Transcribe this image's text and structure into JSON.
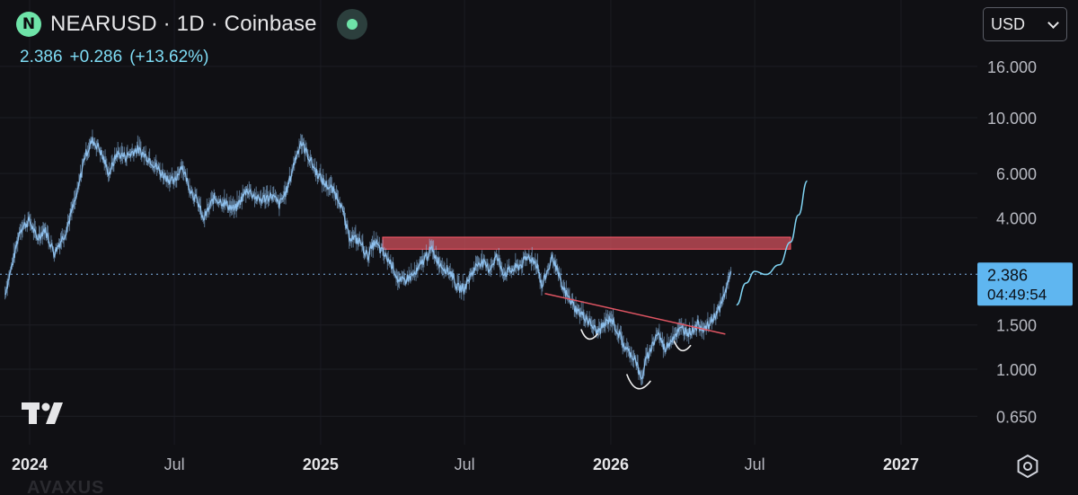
{
  "header": {
    "title": "NEARUSD · 1D · Coinbase",
    "logo_letter": "N",
    "price": "2.386",
    "change": "+0.286",
    "change_pct": "(+13.62%)"
  },
  "currency": {
    "selected": "USD"
  },
  "price_tag": {
    "price": "2.386",
    "countdown": "04:49:54"
  },
  "watermark": "AVAXUS",
  "colors": {
    "background": "#101014",
    "candles": "#8fc1ee",
    "resistance_zone": "#d0505c",
    "trendline": "#e05563",
    "projection": "#7fd3f2",
    "price_label": "#5fb6f0"
  },
  "chart_data": {
    "type": "line",
    "title": "NEARUSD · 1D · Coinbase",
    "y_scale": "log",
    "ylim": [
      0.5,
      20
    ],
    "x_ticks": [
      "2024",
      "Jul",
      "2025",
      "Jul",
      "2026",
      "Jul",
      "2027"
    ],
    "y_ticks": [
      "16.000",
      "10.000",
      "6.000",
      "4.000",
      "2.386",
      "1.500",
      "1.000",
      "0.650"
    ],
    "last_price": 2.386,
    "x_dates_start": "2023-12-01",
    "series": [
      {
        "x": [
          "2023-12-01",
          "2023-12-10",
          "2023-12-20",
          "2024-01-01",
          "2024-01-10",
          "2024-01-20",
          "2024-02-01",
          "2024-02-15",
          "2024-03-01",
          "2024-03-10",
          "2024-03-20",
          "2024-03-28",
          "2024-04-10",
          "2024-04-20",
          "2024-05-01",
          "2024-05-15",
          "2024-06-01",
          "2024-06-15",
          "2024-07-01",
          "2024-07-10",
          "2024-07-20",
          "2024-08-01",
          "2024-08-06",
          "2024-08-20",
          "2024-09-01",
          "2024-09-15",
          "2024-10-01",
          "2024-10-15",
          "2024-11-01",
          "2024-11-10",
          "2024-11-20",
          "2024-12-01",
          "2024-12-07",
          "2024-12-15",
          "2024-12-25",
          "2025-01-05",
          "2025-01-15",
          "2025-01-25",
          "2025-02-05",
          "2025-02-20",
          "2025-03-01",
          "2025-03-10",
          "2025-03-20",
          "2025-04-01",
          "2025-04-10",
          "2025-04-20",
          "2025-05-01",
          "2025-05-10",
          "2025-05-20",
          "2025-06-01",
          "2025-06-15",
          "2025-06-22",
          "2025-07-01",
          "2025-07-10",
          "2025-07-20",
          "2025-08-01",
          "2025-08-10",
          "2025-08-20",
          "2025-09-01",
          "2025-09-10",
          "2025-09-20",
          "2025-10-01",
          "2025-10-06",
          "2025-10-10",
          "2025-10-20",
          "2025-11-01",
          "2025-11-10",
          "2025-11-20",
          "2025-12-01",
          "2025-12-15",
          "2026-01-01",
          "2026-01-10",
          "2026-01-20",
          "2026-02-01",
          "2026-02-08",
          "2026-02-15",
          "2026-03-01",
          "2026-03-10",
          "2026-03-20",
          "2026-04-01",
          "2026-04-10",
          "2026-04-20",
          "2026-05-01",
          "2026-05-10",
          "2026-05-20",
          "2026-05-28",
          "2026-06-01"
        ],
        "values": [
          2.0,
          2.6,
          3.6,
          3.9,
          3.3,
          3.6,
          2.9,
          3.5,
          5.0,
          7.0,
          8.1,
          7.6,
          6.0,
          7.2,
          7.0,
          7.5,
          6.8,
          6.0,
          5.5,
          6.5,
          5.3,
          4.5,
          3.9,
          4.8,
          4.6,
          4.3,
          5.2,
          4.7,
          4.9,
          4.5,
          5.2,
          7.0,
          8.0,
          7.2,
          6.2,
          5.5,
          5.2,
          4.7,
          3.4,
          3.2,
          2.8,
          3.2,
          2.9,
          2.6,
          2.2,
          2.3,
          2.4,
          2.7,
          3.0,
          2.6,
          2.4,
          2.1,
          2.1,
          2.4,
          2.7,
          2.5,
          2.8,
          2.4,
          2.5,
          2.6,
          2.8,
          2.6,
          2.1,
          2.3,
          2.8,
          2.1,
          1.9,
          1.7,
          1.6,
          1.4,
          1.6,
          1.4,
          1.2,
          1.1,
          0.9,
          1.1,
          1.4,
          1.2,
          1.35,
          1.45,
          1.4,
          1.5,
          1.45,
          1.6,
          1.8,
          2.2,
          2.4
        ]
      }
    ],
    "annotations": {
      "resistance_zone": {
        "from": "2025-03-20",
        "to": "2026-08-15",
        "low": 3.0,
        "high": 3.35
      },
      "trendline": {
        "points": [
          [
            "2025-10-10",
            2.0
          ],
          [
            "2026-05-25",
            1.38
          ]
        ]
      },
      "projection": {
        "x": [
          "2026-06-08",
          "2026-06-20",
          "2026-07-01",
          "2026-07-15",
          "2026-08-01",
          "2026-08-15",
          "2026-08-25",
          "2026-09-05"
        ],
        "values": [
          1.8,
          2.2,
          2.45,
          2.38,
          2.6,
          3.2,
          4.1,
          5.6
        ]
      },
      "pattern_arcs": [
        {
          "center": "2025-12-05",
          "bottom": 1.3
        },
        {
          "center": "2026-02-05",
          "bottom": 0.82
        },
        {
          "center": "2026-04-01",
          "bottom": 1.17
        }
      ]
    }
  }
}
